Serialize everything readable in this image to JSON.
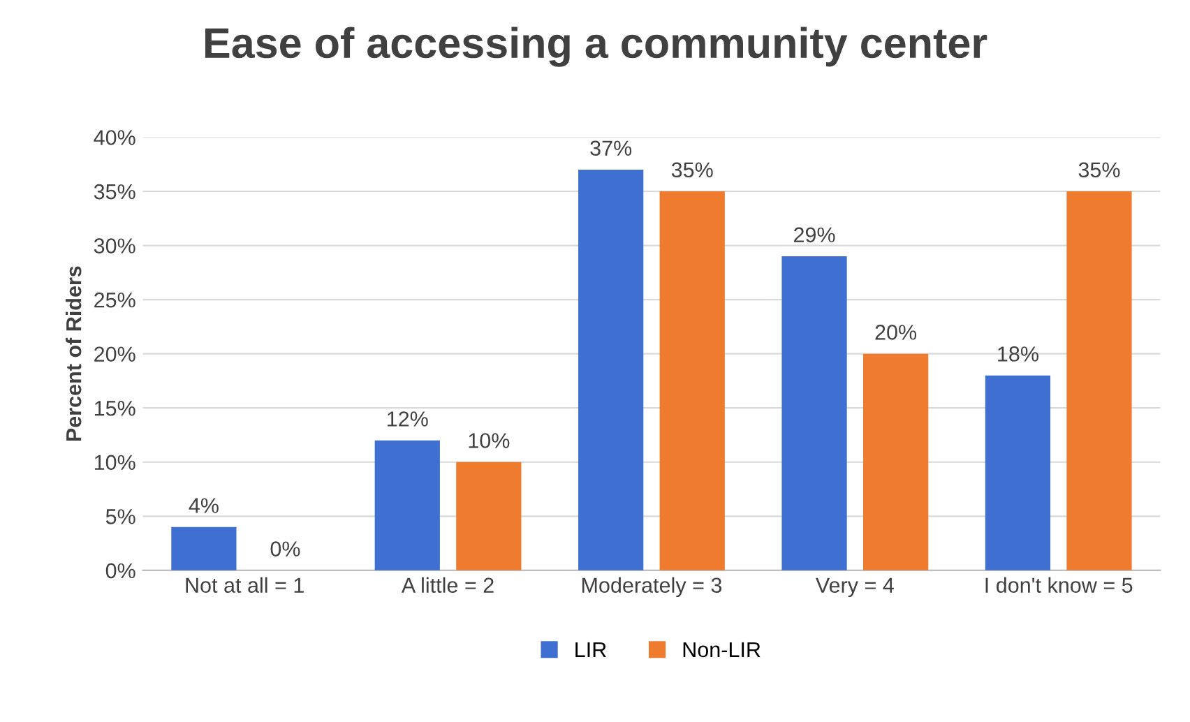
{
  "chart_data": {
    "type": "bar",
    "title": "Ease of accessing a community center",
    "ylabel": "Percent of Riders",
    "categories": [
      "Not at all = 1",
      "A little = 2",
      "Moderately = 3",
      "Very = 4",
      "I don't know = 5"
    ],
    "series": [
      {
        "name": "LIR",
        "color": "#3f6fd0",
        "values": [
          4,
          12,
          37,
          29,
          18
        ]
      },
      {
        "name": "Non-LIR",
        "color": "#ef7b2f",
        "values": [
          0,
          10,
          35,
          20,
          35
        ]
      }
    ],
    "ylim": [
      0,
      40
    ],
    "yticks": [
      {
        "value": 0,
        "label": "0%"
      },
      {
        "value": 5,
        "label": "5%"
      },
      {
        "value": 10,
        "label": "10%"
      },
      {
        "value": 15,
        "label": "15%"
      },
      {
        "value": 20,
        "label": "20%"
      },
      {
        "value": 25,
        "label": "25%"
      },
      {
        "value": 30,
        "label": "30%"
      },
      {
        "value": 35,
        "label": "35%"
      },
      {
        "value": 40,
        "label": "40%"
      }
    ],
    "value_labels": [
      [
        "4%",
        "12%",
        "37%",
        "29%",
        "18%"
      ],
      [
        "0%",
        "10%",
        "35%",
        "20%",
        "35%"
      ]
    ],
    "grid": "y",
    "legend": "bottom"
  }
}
